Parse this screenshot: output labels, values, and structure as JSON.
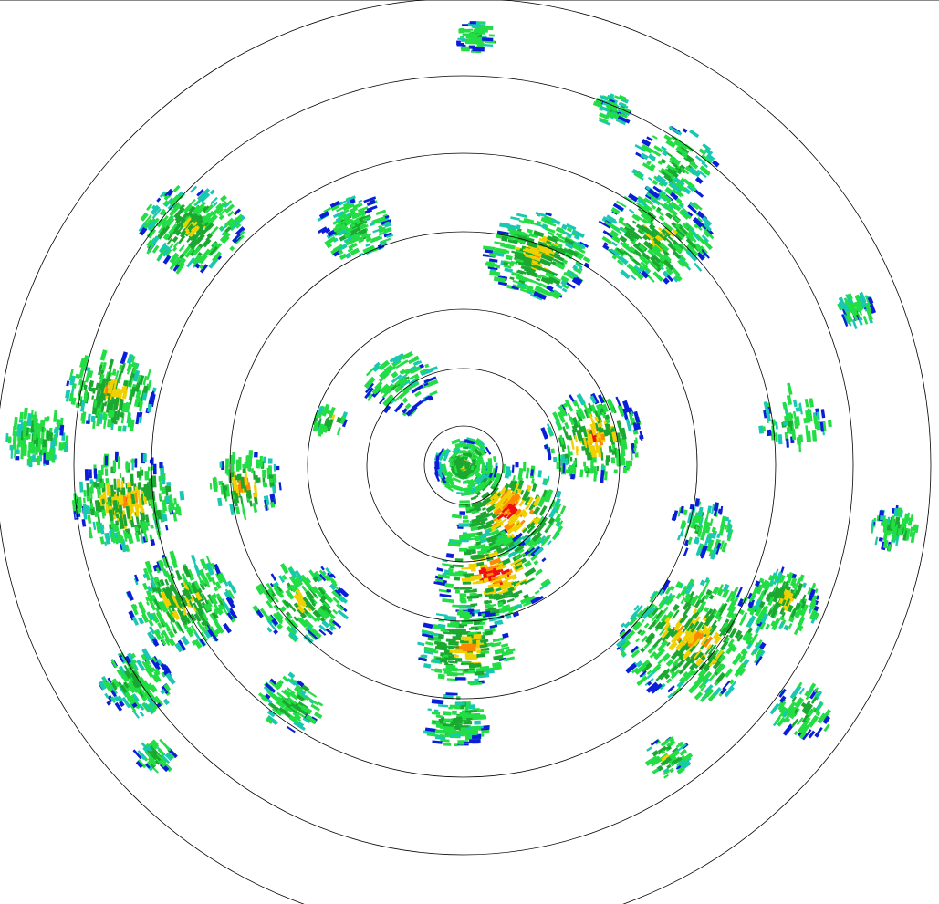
{
  "display": {
    "type": "radar-ppi",
    "range_rings": 7,
    "ring_color": "#000000",
    "background": "#ffffff"
  },
  "palette": {
    "weak": "#0a1ed8",
    "light_cyan": "#18c8b0",
    "light": "#22dd44",
    "moderate": "#1aa830",
    "heavy": "#f0d000",
    "heavier": "#ff8800",
    "intense": "#ee1010"
  }
}
